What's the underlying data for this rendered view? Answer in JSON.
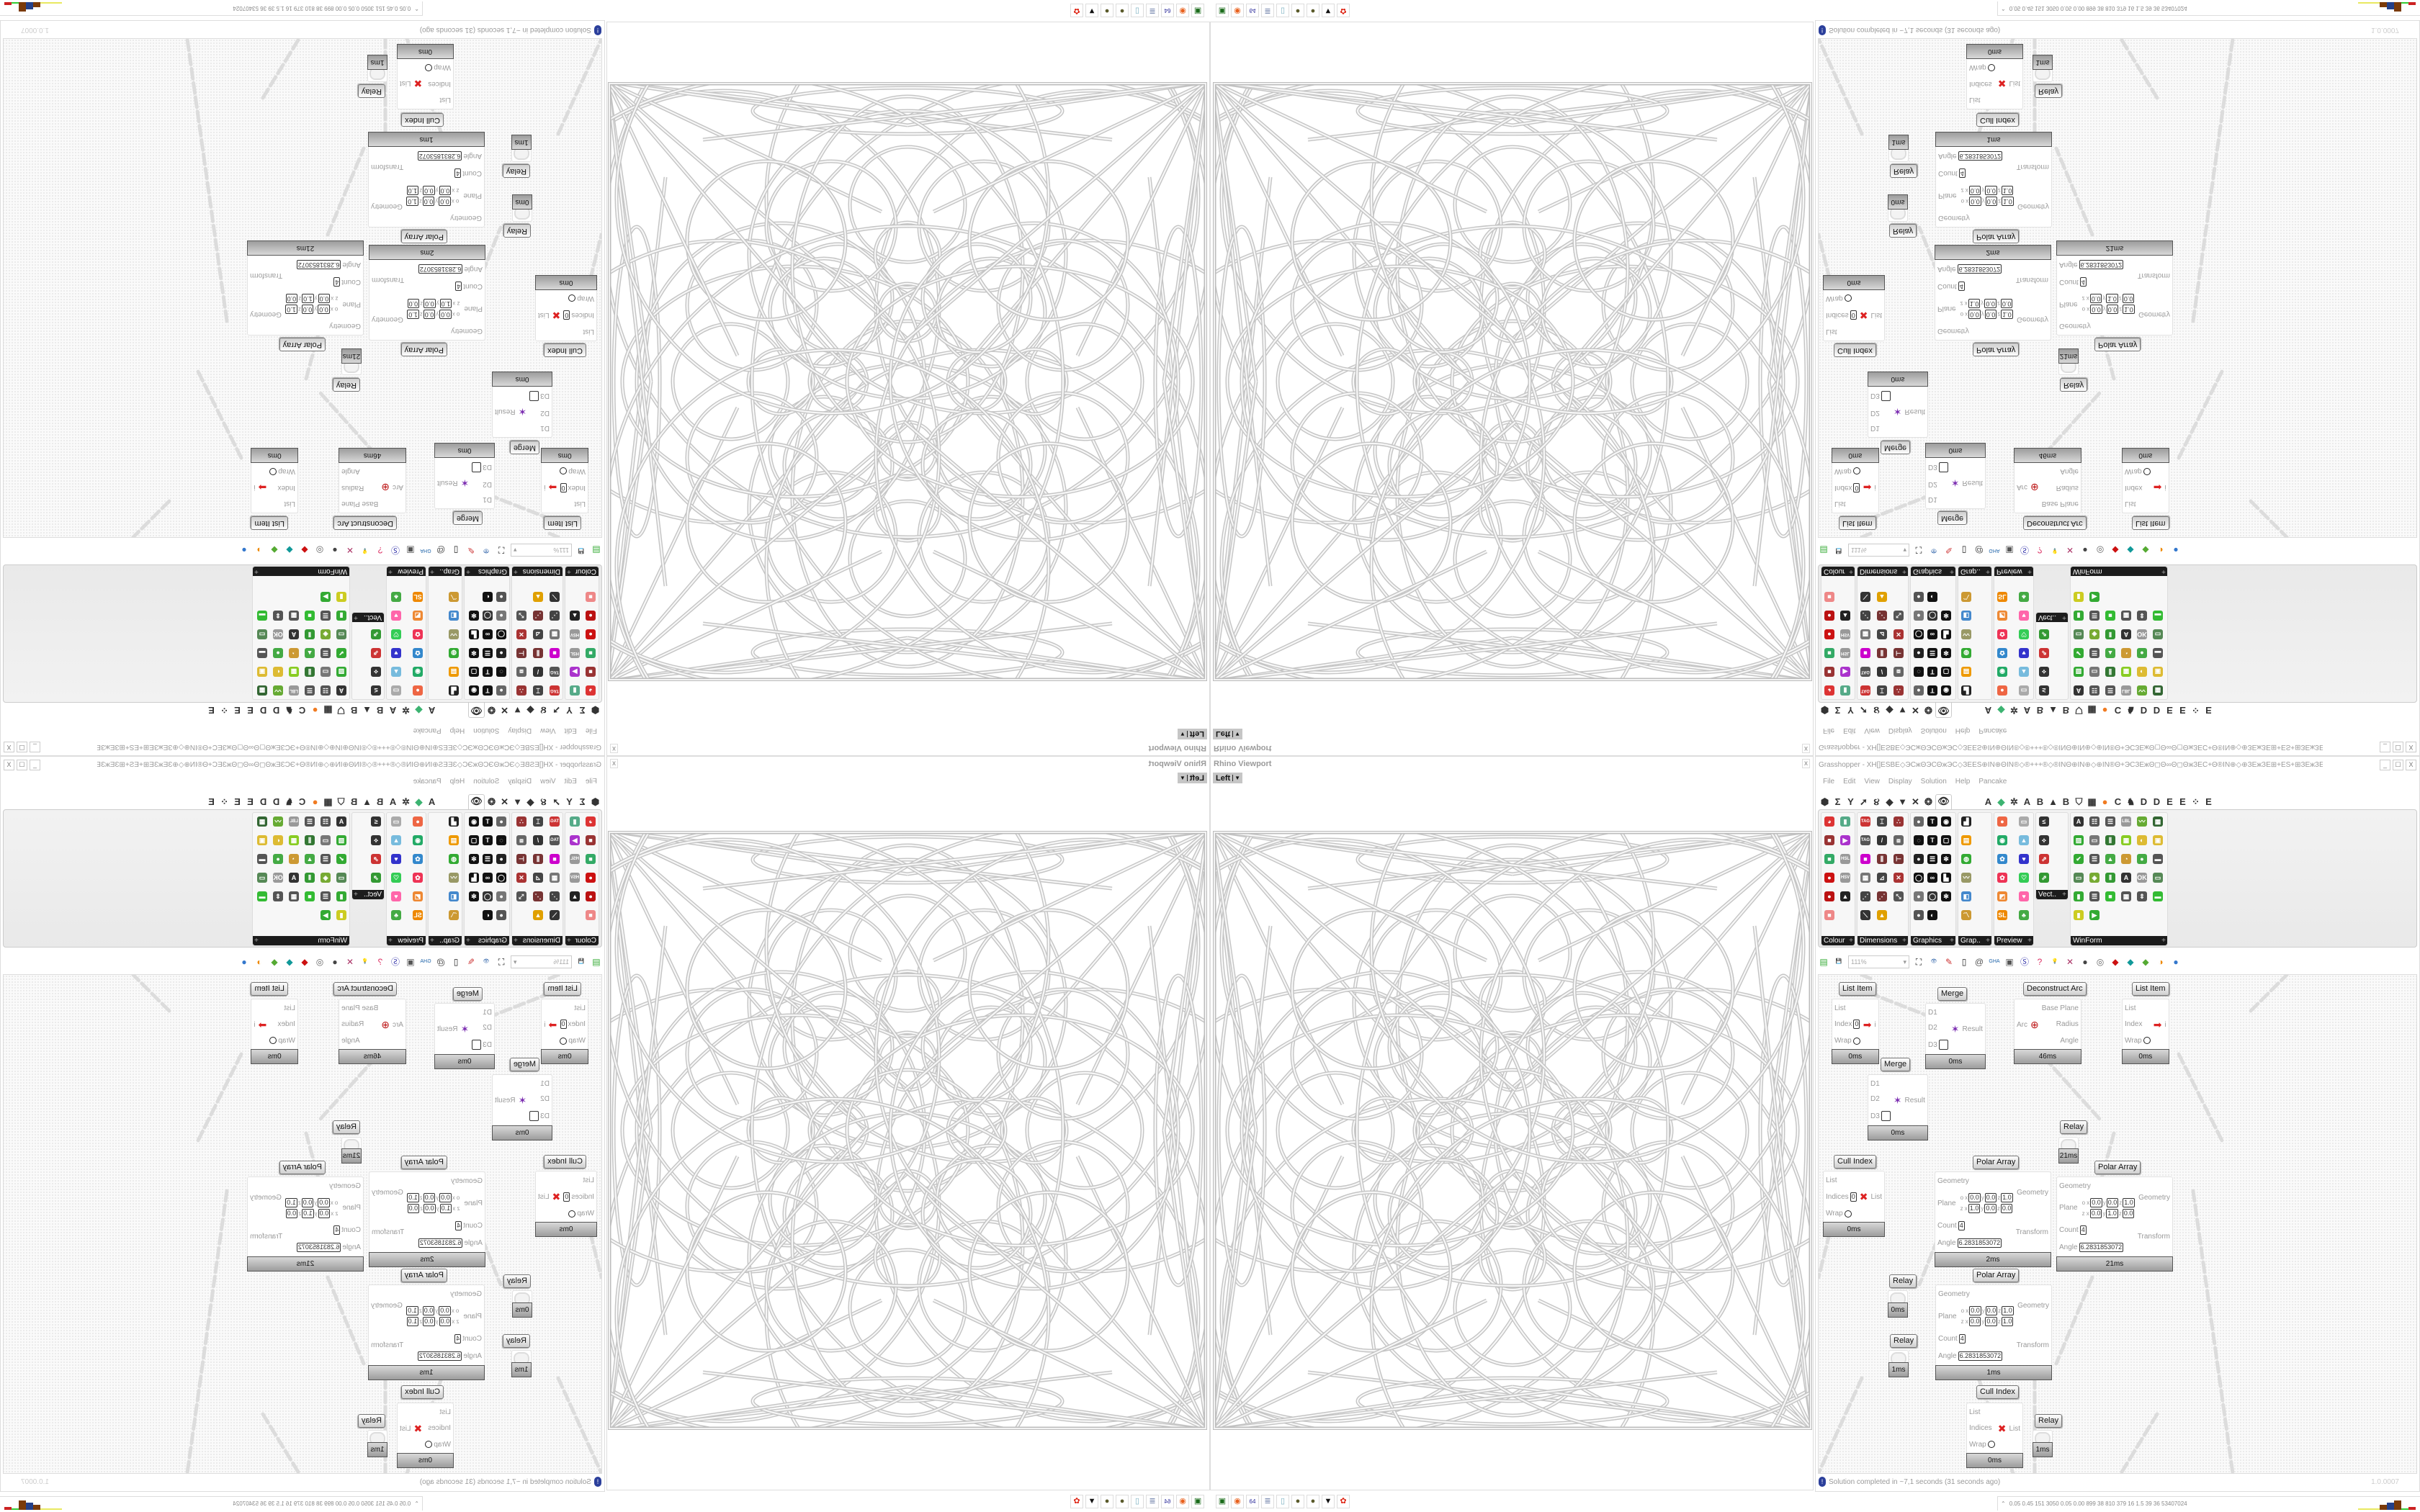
{
  "viewport": {
    "title": "Rhino Viewport",
    "view_label": "Left",
    "close_label": "x"
  },
  "grasshopper": {
    "title": "Grasshopper - XH[]ESBE◇ЭCжΘЭCΘжЭC◇ЗEЕS⊕IN⊕ΘIN®◇®+++®◇®INΘ⊕IN⊕◇⊕IN®Θ+ЭCЗEжΘ◻Θ∞Θ◻ΘжЗEC+Θ®IN⊕◇⊕ЗEжЗE⊞+ЕS+⊞ЗEжЗE⊕◇⊕жЭCЗE⊞⊕+ЭC...",
    "window_buttons": [
      "_",
      "☐",
      "X"
    ],
    "menu": [
      "File",
      "Edit",
      "View",
      "Display",
      "Solution",
      "Help",
      "Pancake"
    ],
    "tabs": [
      {
        "glyph": "⬢",
        "icon": "params-icon"
      },
      {
        "glyph": "Σ",
        "icon": "maths-icon"
      },
      {
        "glyph": "Y",
        "icon": "sets-icon"
      },
      {
        "glyph": "➚",
        "icon": "vector-icon"
      },
      {
        "glyph": "૪",
        "icon": "curve-icon"
      },
      {
        "glyph": "◆",
        "icon": "surface-icon"
      },
      {
        "glyph": "▼",
        "icon": "mesh-icon"
      },
      {
        "glyph": "✕",
        "icon": "intersect-icon"
      },
      {
        "glyph": "❂",
        "icon": "transform-icon"
      },
      {
        "glyph": "👁",
        "icon": "display-icon",
        "active": true
      },
      {
        "glyph": "A",
        "icon": "plugin-a-icon",
        "gap": true
      },
      {
        "glyph": "◆",
        "icon": "green-gem-icon",
        "color": "#3cb371"
      },
      {
        "glyph": "✲",
        "icon": "gear-plugin-icon"
      },
      {
        "glyph": "A",
        "icon": "plugin-a2-icon"
      },
      {
        "glyph": "B",
        "icon": "plugin-b-icon"
      },
      {
        "glyph": "▲",
        "icon": "mountain-icon"
      },
      {
        "glyph": "B",
        "icon": "plugin-b2-icon"
      },
      {
        "glyph": "⛉",
        "icon": "shield-icon"
      },
      {
        "glyph": "▦",
        "icon": "grid-icon"
      },
      {
        "glyph": "●",
        "icon": "orange-circle-icon",
        "color": "#f07b22"
      },
      {
        "glyph": "C",
        "icon": "plugin-c-icon"
      },
      {
        "glyph": "♞",
        "icon": "bird-icon"
      },
      {
        "glyph": "D",
        "icon": "plugin-d-icon"
      },
      {
        "glyph": "D",
        "icon": "plugin-d2-icon"
      },
      {
        "glyph": "E",
        "icon": "plugin-e-icon"
      },
      {
        "glyph": "E",
        "icon": "plugin-e2-icon"
      },
      {
        "glyph": "⁘",
        "icon": "dotted-square-icon"
      },
      {
        "glyph": "E",
        "icon": "plugin-e3-icon"
      }
    ],
    "ribbon_groups": [
      {
        "label": "Colour",
        "icons": [
          {
            "g": "◕",
            "c": "#d33"
          },
          {
            "g": "▮",
            "c": "#5a8"
          },
          {
            "g": "■",
            "c": "#933"
          },
          {
            "g": "▶",
            "c": "#a3c"
          },
          {
            "g": "■",
            "c": "#3a6"
          },
          {
            "g": "HSL",
            "c": "#999"
          },
          {
            "g": "●",
            "c": "#c11"
          },
          {
            "g": "HSV",
            "c": "#999"
          },
          {
            "g": "●",
            "c": "#b11"
          },
          {
            "g": "▲",
            "c": "#222"
          },
          {
            "g": "■",
            "c": "#e88"
          }
        ]
      },
      {
        "label": "Dimensions",
        "icons": [
          {
            "g": "TAG",
            "c": "#c33"
          },
          {
            "g": "⌶",
            "c": "#444"
          },
          {
            "g": "∴",
            "c": "#933"
          },
          {
            "g": "TAG",
            "c": "#555"
          },
          {
            "g": "/",
            "c": "#333"
          },
          {
            "g": "⧈",
            "c": "#666"
          },
          {
            "g": "■",
            "c": "#c0c"
          },
          {
            "g": "⫼",
            "c": "#733"
          },
          {
            "g": "⊢",
            "c": "#733"
          },
          {
            "g": "▦",
            "c": "#777"
          },
          {
            "g": "⊿",
            "c": "#444"
          },
          {
            "g": "✕",
            "c": "#a33"
          },
          {
            "g": "⋰",
            "c": "#444"
          },
          {
            "g": "⋰",
            "c": "#733"
          },
          {
            "g": "⤡",
            "c": "#555"
          },
          {
            "g": "⟍",
            "c": "#333"
          },
          {
            "g": "▲",
            "c": "#e0a000"
          }
        ]
      },
      {
        "label": "Graphics",
        "icons": [
          {
            "g": "●",
            "c": "#666"
          },
          {
            "g": "T",
            "c": "#111"
          },
          {
            "g": "◉",
            "c": "#111"
          },
          {
            "g": "◌",
            "c": "#111"
          },
          {
            "g": "T",
            "c": "#111"
          },
          {
            "g": "▢",
            "c": "#111"
          },
          {
            "g": "●",
            "c": "#222"
          },
          {
            "g": "☰",
            "c": "#111"
          },
          {
            "g": "✻",
            "c": "#111"
          },
          {
            "g": "◯",
            "c": "#111"
          },
          {
            "g": "∞",
            "c": "#111"
          },
          {
            "g": "▙",
            "c": "#111"
          },
          {
            "g": "●",
            "c": "#777"
          },
          {
            "g": "◯",
            "c": "#333"
          },
          {
            "g": "✻",
            "c": "#111"
          },
          {
            "g": "●",
            "c": "#555"
          },
          {
            "g": "◐",
            "c": "#111"
          }
        ]
      },
      {
        "label": "Grap..",
        "icons": [
          {
            "g": "▟",
            "c": "#222"
          },
          {
            "g": "▤",
            "c": "#e90"
          },
          {
            "g": "◍",
            "c": "#3a3"
          },
          {
            "g": "〰",
            "c": "#996"
          },
          {
            "g": "◧",
            "c": "#48c"
          },
          {
            "g": "〽",
            "c": "#c93"
          }
        ]
      },
      {
        "label": "Preview",
        "icons": [
          {
            "g": "●",
            "c": "#e64"
          },
          {
            "g": "▭",
            "c": "#aaa"
          },
          {
            "g": "◉",
            "c": "#2a6"
          },
          {
            "g": "▲",
            "c": "#7bd"
          },
          {
            "g": "✿",
            "c": "#38c"
          },
          {
            "g": "♥",
            "c": "#33c"
          },
          {
            "g": "✿",
            "c": "#e35"
          },
          {
            "g": "♡",
            "c": "#3c5"
          },
          {
            "g": "◩",
            "c": "#e83"
          },
          {
            "g": "♥",
            "c": "#f6a"
          },
          {
            "g": "SL",
            "c": "#e80"
          },
          {
            "g": "♣",
            "c": "#4a4"
          }
        ]
      },
      {
        "label": "Vect..",
        "icons": [
          {
            "g": "≤",
            "c": "#333"
          },
          {
            "g": "⟡",
            "c": "#333"
          },
          {
            "g": "⇗",
            "c": "#c33"
          },
          {
            "g": "⇗",
            "c": "#393"
          }
        ]
      },
      {
        "label": "WinForm",
        "icons": [
          {
            "g": "A",
            "c": "#333"
          },
          {
            "g": "☷",
            "c": "#555"
          },
          {
            "g": "☰",
            "c": "#555"
          },
          {
            "g": "LBL",
            "c": "#999"
          },
          {
            "g": "〰",
            "c": "#6a3"
          },
          {
            "g": "▦",
            "c": "#363"
          },
          {
            "g": "▨",
            "c": "#3a3"
          },
          {
            "g": "▭",
            "c": "#777"
          },
          {
            "g": "⫼",
            "c": "#373"
          },
          {
            "g": "▦",
            "c": "#8c2"
          },
          {
            "g": "◐",
            "c": "#db3"
          },
          {
            "g": "▣",
            "c": "#db3"
          },
          {
            "g": "✔",
            "c": "#3a3"
          },
          {
            "g": "☰",
            "c": "#555"
          },
          {
            "g": "▲",
            "c": "#4a4"
          },
          {
            "g": "◔",
            "c": "#c93"
          },
          {
            "g": "●",
            "c": "#4a4"
          },
          {
            "g": "▬",
            "c": "#555"
          },
          {
            "g": "▭",
            "c": "#585"
          },
          {
            "g": "◈",
            "c": "#7a3"
          },
          {
            "g": "⫴",
            "c": "#393"
          },
          {
            "g": "A",
            "c": "#333"
          },
          {
            "g": "OK",
            "c": "#999"
          },
          {
            "g": "▭",
            "c": "#585"
          },
          {
            "g": "▮",
            "c": "#3a3"
          },
          {
            "g": "☰",
            "c": "#555"
          },
          {
            "g": "■",
            "c": "#3b3"
          },
          {
            "g": "▦",
            "c": "#555"
          },
          {
            "g": "⇕",
            "c": "#555"
          },
          {
            "g": "▬",
            "c": "#3b3"
          },
          {
            "g": "▮",
            "c": "#cc2"
          },
          {
            "g": "▶",
            "c": "#3a3"
          }
        ]
      }
    ],
    "toolbar": {
      "zoom": "111%",
      "icons": [
        {
          "g": "▤",
          "c": "#3a3",
          "name": "open-file-icon"
        },
        {
          "g": "💾",
          "c": "#33a",
          "name": "save-icon"
        },
        {
          "g": "⛶",
          "c": "#222",
          "name": "zoom-extents-icon"
        },
        {
          "g": "👁",
          "c": "#36a",
          "name": "preview-icon"
        },
        {
          "g": "✎",
          "c": "#c33",
          "name": "sketch-icon"
        },
        {
          "g": "▯",
          "c": "#222",
          "name": "cluster-icon"
        },
        {
          "g": "@",
          "c": "#555",
          "name": "at-icon"
        },
        {
          "g": "GHA",
          "c": "#26a",
          "name": "gha-icon"
        },
        {
          "g": "▣",
          "c": "#555",
          "name": "canvas-icon"
        },
        {
          "g": "Ⓢ",
          "c": "#33a",
          "name": "search-icon"
        },
        {
          "g": "?",
          "c": "#d36",
          "name": "package-icon"
        },
        {
          "g": "💡",
          "c": "#66c",
          "name": "bulb-icon"
        },
        {
          "g": "✕",
          "c": "#a36",
          "name": "dna-icon"
        },
        {
          "g": "●",
          "c": "#444",
          "name": "gray-shape-icon"
        },
        {
          "g": "◎",
          "c": "#666",
          "name": "ring-icon"
        },
        {
          "g": "◆",
          "c": "#c11",
          "name": "red-gem-icon"
        },
        {
          "g": "◆",
          "c": "#199",
          "name": "teal-shape-icon"
        },
        {
          "g": "◆",
          "c": "#5a3",
          "name": "green-shape-icon"
        },
        {
          "g": "◑",
          "c": "#e80",
          "name": "half-sphere-icon"
        },
        {
          "g": "●",
          "c": "#37c",
          "name": "blue-sphere-icon"
        }
      ]
    },
    "nodes": [
      {
        "label": "List Item",
        "time": "0ms",
        "icon": "➡",
        "inputs": [
          {
            "name": "List"
          },
          {
            "name": "Index",
            "value": "0"
          },
          {
            "name": "Wrap",
            "toggle": true
          }
        ],
        "outputs": [
          {
            "name": "i"
          }
        ]
      },
      {
        "label": "Merge",
        "time": "0ms",
        "icon": "✶",
        "inputs": [
          {
            "name": "D1"
          },
          {
            "name": "D2"
          },
          {
            "name": "D3",
            "empty": true
          }
        ],
        "outputs": [
          {
            "name": "Result"
          }
        ]
      },
      {
        "label": "Deconstruct Arc",
        "time": "46ms",
        "icon": "⊕",
        "inputs": [
          {
            "name": "Arc"
          }
        ],
        "outputs": [
          {
            "name": "Base Plane"
          },
          {
            "name": "Radius"
          },
          {
            "name": "Angle"
          }
        ]
      },
      {
        "label": "List Item",
        "time": "0ms",
        "icon": "➡",
        "inputs": [
          {
            "name": "List"
          },
          {
            "name": "Index"
          },
          {
            "name": "Wrap",
            "toggle": true
          }
        ],
        "outputs": [
          {
            "name": "i"
          }
        ]
      },
      {
        "label": "Merge",
        "time": "0ms",
        "icon": "✶",
        "inputs": [
          {
            "name": "D1"
          },
          {
            "name": "D2"
          },
          {
            "name": "D3",
            "empty": true
          }
        ],
        "outputs": [
          {
            "name": "Result"
          }
        ]
      },
      {
        "label": "Cull Index",
        "time": "0ms",
        "icon": "✖",
        "inputs": [
          {
            "name": "List"
          },
          {
            "name": "Indices",
            "value": "0"
          },
          {
            "name": "Wrap",
            "toggle": true
          }
        ],
        "outputs": [
          {
            "name": "List"
          }
        ]
      },
      {
        "label": "Polar Array",
        "time": "2ms",
        "inputs": [
          {
            "name": "Geometry"
          },
          {
            "name": "Plane",
            "plane": {
              "o": [
                "0.0",
                "0.0",
                "1.0"
              ],
              "z": [
                "1.0",
                "0.0",
                "0.0"
              ]
            }
          },
          {
            "name": "Count",
            "value": "4"
          },
          {
            "name": "Angle",
            "value": "6.2831853072"
          }
        ],
        "outputs": [
          {
            "name": "Geometry"
          },
          {
            "name": "Transform"
          }
        ]
      },
      {
        "label": "Relay",
        "time": "21ms",
        "relay": true
      },
      {
        "label": "Polar Array",
        "time": "21ms",
        "inputs": [
          {
            "name": "Geometry"
          },
          {
            "name": "Plane",
            "plane": {
              "o": [
                "0.0",
                "0.0",
                "1.0"
              ],
              "z": [
                "0.0",
                "1.0",
                "0.0"
              ]
            }
          },
          {
            "name": "Count",
            "value": "4"
          },
          {
            "name": "Angle",
            "value": "6.2831853072"
          }
        ],
        "outputs": [
          {
            "name": "Geometry"
          },
          {
            "name": "Transform"
          }
        ]
      },
      {
        "label": "Polar Array",
        "time": "1ms",
        "inputs": [
          {
            "name": "Geometry"
          },
          {
            "name": "Plane",
            "plane": {
              "o": [
                "0.0",
                "0.0",
                "1.0"
              ],
              "z": [
                "0.0",
                "0.0",
                "1.0"
              ]
            }
          },
          {
            "name": "Count",
            "value": "4"
          },
          {
            "name": "Angle",
            "value": "6.2831853072"
          }
        ],
        "outputs": [
          {
            "name": "Geometry"
          },
          {
            "name": "Transform"
          }
        ]
      },
      {
        "label": "Relay",
        "time": "0ms",
        "relay": true
      },
      {
        "label": "Relay",
        "time": "1ms",
        "relay": true
      },
      {
        "label": "Cull Index",
        "time": "0ms",
        "icon": "✖",
        "inputs": [
          {
            "name": "List"
          },
          {
            "name": "Indices"
          },
          {
            "name": "Wrap",
            "toggle": true
          }
        ],
        "outputs": [
          {
            "name": "List"
          }
        ]
      },
      {
        "label": "Relay",
        "time": "1ms",
        "relay": true
      }
    ],
    "status": {
      "icon": "info-icon",
      "text": "Solution completed in ~7,1 seconds (31 seconds ago)",
      "version": "1.0.0007"
    }
  },
  "stats": {
    "text": "0.05 0.45 151 3050 0.05 0.00 899 38 810 379 16 1.5 39 36 53407024",
    "bar_colors": [
      "#e8e860",
      "#e8e860",
      "#e8e860",
      "#7a3a0a",
      "#23408a",
      "#7a3a0a",
      "#3c3",
      "#c22"
    ]
  },
  "taskbar": [
    {
      "g": "▣",
      "c": "#1a6b1a",
      "name": "terminal-app-icon"
    },
    {
      "g": "◉",
      "c": "#e8601c",
      "name": "firefox-icon"
    },
    {
      "g": "64",
      "c": "#2b2b9a",
      "name": "floppy-64-icon"
    },
    {
      "g": "≣",
      "c": "#7a8ab0",
      "name": "scroll-icon"
    },
    {
      "g": "▯",
      "c": "#7ab0c0",
      "name": "notepad-icon"
    },
    {
      "g": "●",
      "c": "#5a5a2a",
      "name": "gear-app-icon"
    },
    {
      "g": "●",
      "c": "#5a5a2a",
      "name": "gear-app-2-icon"
    },
    {
      "g": "▼",
      "c": "#111",
      "name": "penguin-app-icon"
    },
    {
      "g": "✿",
      "c": "#d21",
      "name": "red-app-icon"
    }
  ]
}
